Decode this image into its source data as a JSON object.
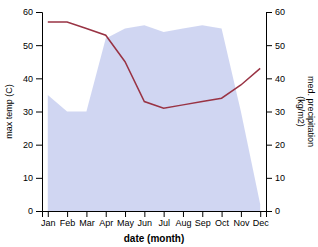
{
  "chart_data": {
    "type": "line",
    "xlabel": "date (month)",
    "ylabel": "max temp (C)",
    "y2label": "med. precipitation\n(kg/m2)",
    "categories": [
      "Jan",
      "Feb",
      "Mar",
      "Apr",
      "May",
      "Jun",
      "Jul",
      "Aug",
      "Sep",
      "Oct",
      "Nov",
      "Dec"
    ],
    "series": [
      {
        "type": "area",
        "axis": "y2",
        "color": "#aab4e8",
        "values": [
          35,
          30,
          30,
          52,
          55,
          56,
          54,
          55,
          56,
          55,
          30,
          2
        ]
      },
      {
        "type": "line",
        "color": "#993344",
        "values": [
          57,
          57,
          55,
          53,
          45,
          33,
          31,
          32,
          33,
          34,
          38,
          43
        ]
      }
    ],
    "ylim": [
      0,
      60
    ],
    "yticks": [
      0,
      10,
      20,
      30,
      40,
      50,
      60
    ],
    "y2lim": [
      0,
      60
    ],
    "y2ticks": [
      0,
      10,
      20,
      30,
      40,
      50,
      60
    ]
  }
}
